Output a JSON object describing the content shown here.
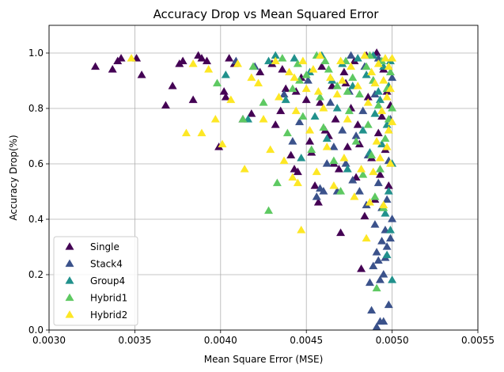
{
  "chart_data": {
    "type": "scatter",
    "title": "Accuracy Drop vs Mean Squared Error",
    "xlabel": "Mean Square Error (MSE)",
    "ylabel": "Accuracy Drop(%)",
    "xlim": [
      0.003,
      0.0055
    ],
    "ylim": [
      0.0,
      1.1
    ],
    "xticks": [
      "0.0030",
      "0.0035",
      "0.0040",
      "0.0045",
      "0.0050",
      "0.0055"
    ],
    "yticks": [
      "0.0",
      "0.2",
      "0.4",
      "0.6",
      "0.8",
      "1.0"
    ],
    "grid": true,
    "legend_position": "lower-left",
    "marker": "triangle",
    "series": [
      {
        "name": "Single",
        "color": "#440154",
        "points": [
          [
            0.00327,
            0.95
          ],
          [
            0.00337,
            0.94
          ],
          [
            0.0034,
            0.97
          ],
          [
            0.00342,
            0.98
          ],
          [
            0.00351,
            0.98
          ],
          [
            0.00354,
            0.92
          ],
          [
            0.00368,
            0.81
          ],
          [
            0.00372,
            0.88
          ],
          [
            0.00376,
            0.96
          ],
          [
            0.00378,
            0.97
          ],
          [
            0.00384,
            0.83
          ],
          [
            0.00387,
            0.99
          ],
          [
            0.00389,
            0.98
          ],
          [
            0.00392,
            0.97
          ],
          [
            0.00399,
            0.66
          ],
          [
            0.00402,
            0.86
          ],
          [
            0.00403,
            0.84
          ],
          [
            0.00405,
            0.98
          ],
          [
            0.00408,
            0.96
          ],
          [
            0.00413,
            0.76
          ],
          [
            0.00418,
            0.78
          ],
          [
            0.00423,
            0.93
          ],
          [
            0.0043,
            0.96
          ],
          [
            0.00432,
            0.74
          ],
          [
            0.00435,
            0.79
          ],
          [
            0.00438,
            0.87
          ],
          [
            0.00441,
            0.63
          ],
          [
            0.00443,
            0.58
          ],
          [
            0.00445,
            0.57
          ],
          [
            0.00447,
            0.91
          ],
          [
            0.0045,
            0.83
          ],
          [
            0.00453,
            0.64
          ],
          [
            0.00455,
            0.52
          ],
          [
            0.00457,
            0.46
          ],
          [
            0.00459,
            0.95
          ],
          [
            0.00461,
            0.72
          ],
          [
            0.00463,
            0.7
          ],
          [
            0.00465,
            0.88
          ],
          [
            0.00467,
            0.76
          ],
          [
            0.00469,
            0.58
          ],
          [
            0.0047,
            0.35
          ],
          [
            0.00472,
            0.93
          ],
          [
            0.00474,
            0.66
          ],
          [
            0.00476,
            0.8
          ],
          [
            0.00478,
            0.97
          ],
          [
            0.00479,
            0.55
          ],
          [
            0.0048,
            0.74
          ],
          [
            0.00482,
            0.22
          ],
          [
            0.00484,
            0.41
          ],
          [
            0.00485,
            0.99
          ],
          [
            0.00486,
            0.84
          ],
          [
            0.00488,
            0.62
          ],
          [
            0.00489,
            0.9
          ],
          [
            0.0049,
            0.47
          ],
          [
            0.00491,
            1.0
          ],
          [
            0.00492,
            0.71
          ],
          [
            0.00493,
            0.56
          ],
          [
            0.00494,
            0.77
          ],
          [
            0.00495,
            0.94
          ],
          [
            0.00496,
            0.65
          ],
          [
            0.00497,
            0.86
          ],
          [
            0.00498,
            0.52
          ],
          [
            0.00499,
            0.81
          ],
          [
            0.00436,
            0.94
          ],
          [
            0.00444,
            0.86
          ],
          [
            0.00452,
            0.68
          ],
          [
            0.00458,
            0.82
          ],
          [
            0.00466,
            0.6
          ],
          [
            0.00473,
            0.89
          ],
          [
            0.00481,
            0.67
          ]
        ]
      },
      {
        "name": "Stack4",
        "color": "#3b528b",
        "points": [
          [
            0.00409,
            0.97
          ],
          [
            0.0042,
            0.95
          ],
          [
            0.00437,
            0.85
          ],
          [
            0.00442,
            0.68
          ],
          [
            0.00446,
            0.75
          ],
          [
            0.00451,
            0.9
          ],
          [
            0.00456,
            0.48
          ],
          [
            0.00458,
            0.51
          ],
          [
            0.0046,
            0.5
          ],
          [
            0.00462,
            0.6
          ],
          [
            0.00464,
            0.82
          ],
          [
            0.00466,
            0.66
          ],
          [
            0.00468,
            0.5
          ],
          [
            0.00471,
            0.72
          ],
          [
            0.00473,
            0.6
          ],
          [
            0.00475,
            0.86
          ],
          [
            0.00477,
            0.54
          ],
          [
            0.00479,
            0.7
          ],
          [
            0.00481,
            0.5
          ],
          [
            0.00483,
            0.79
          ],
          [
            0.00485,
            0.45
          ],
          [
            0.00486,
            0.63
          ],
          [
            0.00487,
            0.17
          ],
          [
            0.00488,
            0.07
          ],
          [
            0.00489,
            0.23
          ],
          [
            0.0049,
            0.38
          ],
          [
            0.00491,
            0.01
          ],
          [
            0.00491,
            0.28
          ],
          [
            0.00492,
            0.25
          ],
          [
            0.00492,
            0.53
          ],
          [
            0.00493,
            0.03
          ],
          [
            0.00493,
            0.18
          ],
          [
            0.00494,
            0.32
          ],
          [
            0.00494,
            0.44
          ],
          [
            0.00495,
            0.03
          ],
          [
            0.00495,
            0.2
          ],
          [
            0.00496,
            0.26
          ],
          [
            0.00496,
            0.36
          ],
          [
            0.00497,
            0.3
          ],
          [
            0.00497,
            0.47
          ],
          [
            0.00498,
            0.09
          ],
          [
            0.00498,
            0.61
          ],
          [
            0.00499,
            0.33
          ],
          [
            0.00499,
            0.76
          ],
          [
            0.005,
            0.4
          ],
          [
            0.005,
            0.91
          ],
          [
            0.00492,
            0.98
          ],
          [
            0.0049,
            0.85
          ],
          [
            0.00484,
            0.95
          ],
          [
            0.00476,
            0.99
          ]
        ]
      },
      {
        "name": "Group4",
        "color": "#21918c",
        "points": [
          [
            0.00403,
            0.92
          ],
          [
            0.00416,
            0.76
          ],
          [
            0.00428,
            0.97
          ],
          [
            0.00432,
            0.99
          ],
          [
            0.00438,
            0.83
          ],
          [
            0.00443,
            0.98
          ],
          [
            0.00447,
            0.62
          ],
          [
            0.00452,
            0.93
          ],
          [
            0.00455,
            0.77
          ],
          [
            0.00459,
            0.99
          ],
          [
            0.00462,
            0.69
          ],
          [
            0.00465,
            0.9
          ],
          [
            0.00468,
            0.8
          ],
          [
            0.00471,
            0.96
          ],
          [
            0.00474,
            0.58
          ],
          [
            0.00477,
            0.88
          ],
          [
            0.0048,
            0.98
          ],
          [
            0.00483,
            0.72
          ],
          [
            0.00485,
            0.92
          ],
          [
            0.00487,
            0.64
          ],
          [
            0.00489,
            0.99
          ],
          [
            0.0049,
            0.78
          ],
          [
            0.00492,
            0.86
          ],
          [
            0.00494,
            0.67
          ],
          [
            0.00495,
            0.95
          ],
          [
            0.00496,
            0.42
          ],
          [
            0.00497,
            0.74
          ],
          [
            0.00498,
            0.5
          ],
          [
            0.00498,
            0.88
          ],
          [
            0.00499,
            0.36
          ],
          [
            0.00499,
            0.97
          ],
          [
            0.005,
            0.18
          ],
          [
            0.005,
            0.6
          ],
          [
            0.00497,
            0.27
          ],
          [
            0.00493,
            0.83
          ]
        ]
      },
      {
        "name": "Hybrid1",
        "color": "#5ec962",
        "points": [
          [
            0.00398,
            0.89
          ],
          [
            0.00413,
            0.76
          ],
          [
            0.00419,
            0.95
          ],
          [
            0.00425,
            0.82
          ],
          [
            0.00428,
            0.43
          ],
          [
            0.00433,
            0.53
          ],
          [
            0.00436,
            0.98
          ],
          [
            0.00439,
            0.71
          ],
          [
            0.00442,
            0.87
          ],
          [
            0.00445,
            0.96
          ],
          [
            0.00448,
            0.77
          ],
          [
            0.0045,
            0.92
          ],
          [
            0.00453,
            0.65
          ],
          [
            0.00456,
            0.99
          ],
          [
            0.00458,
            0.84
          ],
          [
            0.0046,
            0.73
          ],
          [
            0.00463,
            0.94
          ],
          [
            0.00466,
            0.61
          ],
          [
            0.00468,
            0.88
          ],
          [
            0.0047,
            0.5
          ],
          [
            0.00473,
            0.97
          ],
          [
            0.00475,
            0.79
          ],
          [
            0.00477,
            0.91
          ],
          [
            0.00479,
            0.68
          ],
          [
            0.00481,
            0.85
          ],
          [
            0.00483,
            0.56
          ],
          [
            0.00485,
            0.95
          ],
          [
            0.00486,
            0.74
          ],
          [
            0.00488,
            0.63
          ],
          [
            0.00489,
            0.9
          ],
          [
            0.0049,
            0.48
          ],
          [
            0.00491,
            0.15
          ],
          [
            0.00492,
            0.81
          ],
          [
            0.00493,
            0.58
          ],
          [
            0.00494,
            0.97
          ],
          [
            0.00495,
            0.44
          ],
          [
            0.00496,
            0.69
          ],
          [
            0.00497,
            0.87
          ],
          [
            0.00498,
            0.76
          ],
          [
            0.00499,
            0.93
          ],
          [
            0.005,
            0.8
          ],
          [
            0.00487,
            0.99
          ],
          [
            0.00474,
            0.86
          ],
          [
            0.00461,
            0.97
          ],
          [
            0.00446,
            0.9
          ]
        ]
      },
      {
        "name": "Hybrid2",
        "color": "#fde725",
        "points": [
          [
            0.00348,
            0.98
          ],
          [
            0.0038,
            0.71
          ],
          [
            0.00384,
            0.96
          ],
          [
            0.00389,
            0.71
          ],
          [
            0.00393,
            0.94
          ],
          [
            0.00397,
            0.76
          ],
          [
            0.00401,
            0.67
          ],
          [
            0.00406,
            0.83
          ],
          [
            0.0041,
            0.96
          ],
          [
            0.00414,
            0.58
          ],
          [
            0.00418,
            0.91
          ],
          [
            0.00422,
            0.89
          ],
          [
            0.00425,
            0.76
          ],
          [
            0.00429,
            0.65
          ],
          [
            0.00432,
            0.97
          ],
          [
            0.00434,
            0.84
          ],
          [
            0.00437,
            0.61
          ],
          [
            0.0044,
            0.93
          ],
          [
            0.00442,
            0.55
          ],
          [
            0.00444,
            0.79
          ],
          [
            0.00445,
            0.53
          ],
          [
            0.00447,
            0.36
          ],
          [
            0.00448,
            0.97
          ],
          [
            0.0045,
            0.87
          ],
          [
            0.00452,
            0.72
          ],
          [
            0.00454,
            0.94
          ],
          [
            0.00456,
            0.57
          ],
          [
            0.00458,
            0.99
          ],
          [
            0.0046,
            0.8
          ],
          [
            0.00462,
            0.66
          ],
          [
            0.00464,
            0.91
          ],
          [
            0.00466,
            0.52
          ],
          [
            0.00468,
            0.85
          ],
          [
            0.0047,
            0.97
          ],
          [
            0.00472,
            0.62
          ],
          [
            0.00474,
            0.76
          ],
          [
            0.00476,
            0.95
          ],
          [
            0.00478,
            0.48
          ],
          [
            0.0048,
            0.88
          ],
          [
            0.00482,
            0.58
          ],
          [
            0.00484,
            0.99
          ],
          [
            0.00485,
            0.33
          ],
          [
            0.00486,
            0.82
          ],
          [
            0.00487,
            0.46
          ],
          [
            0.00488,
            0.93
          ],
          [
            0.00489,
            0.57
          ],
          [
            0.0049,
            0.89
          ],
          [
            0.00491,
            0.68
          ],
          [
            0.00492,
            0.96
          ],
          [
            0.00493,
            0.62
          ],
          [
            0.00494,
            0.79
          ],
          [
            0.00495,
            0.9
          ],
          [
            0.00495,
            0.45
          ],
          [
            0.00496,
            0.98
          ],
          [
            0.00497,
            0.66
          ],
          [
            0.00497,
            0.84
          ],
          [
            0.00498,
            0.72
          ],
          [
            0.00498,
            0.95
          ],
          [
            0.00499,
            0.87
          ],
          [
            0.00499,
            0.6
          ],
          [
            0.005,
            0.98
          ],
          [
            0.005,
            0.75
          ],
          [
            0.00471,
            0.9
          ],
          [
            0.00457,
            0.86
          ],
          [
            0.00443,
            0.91
          ]
        ]
      }
    ]
  }
}
